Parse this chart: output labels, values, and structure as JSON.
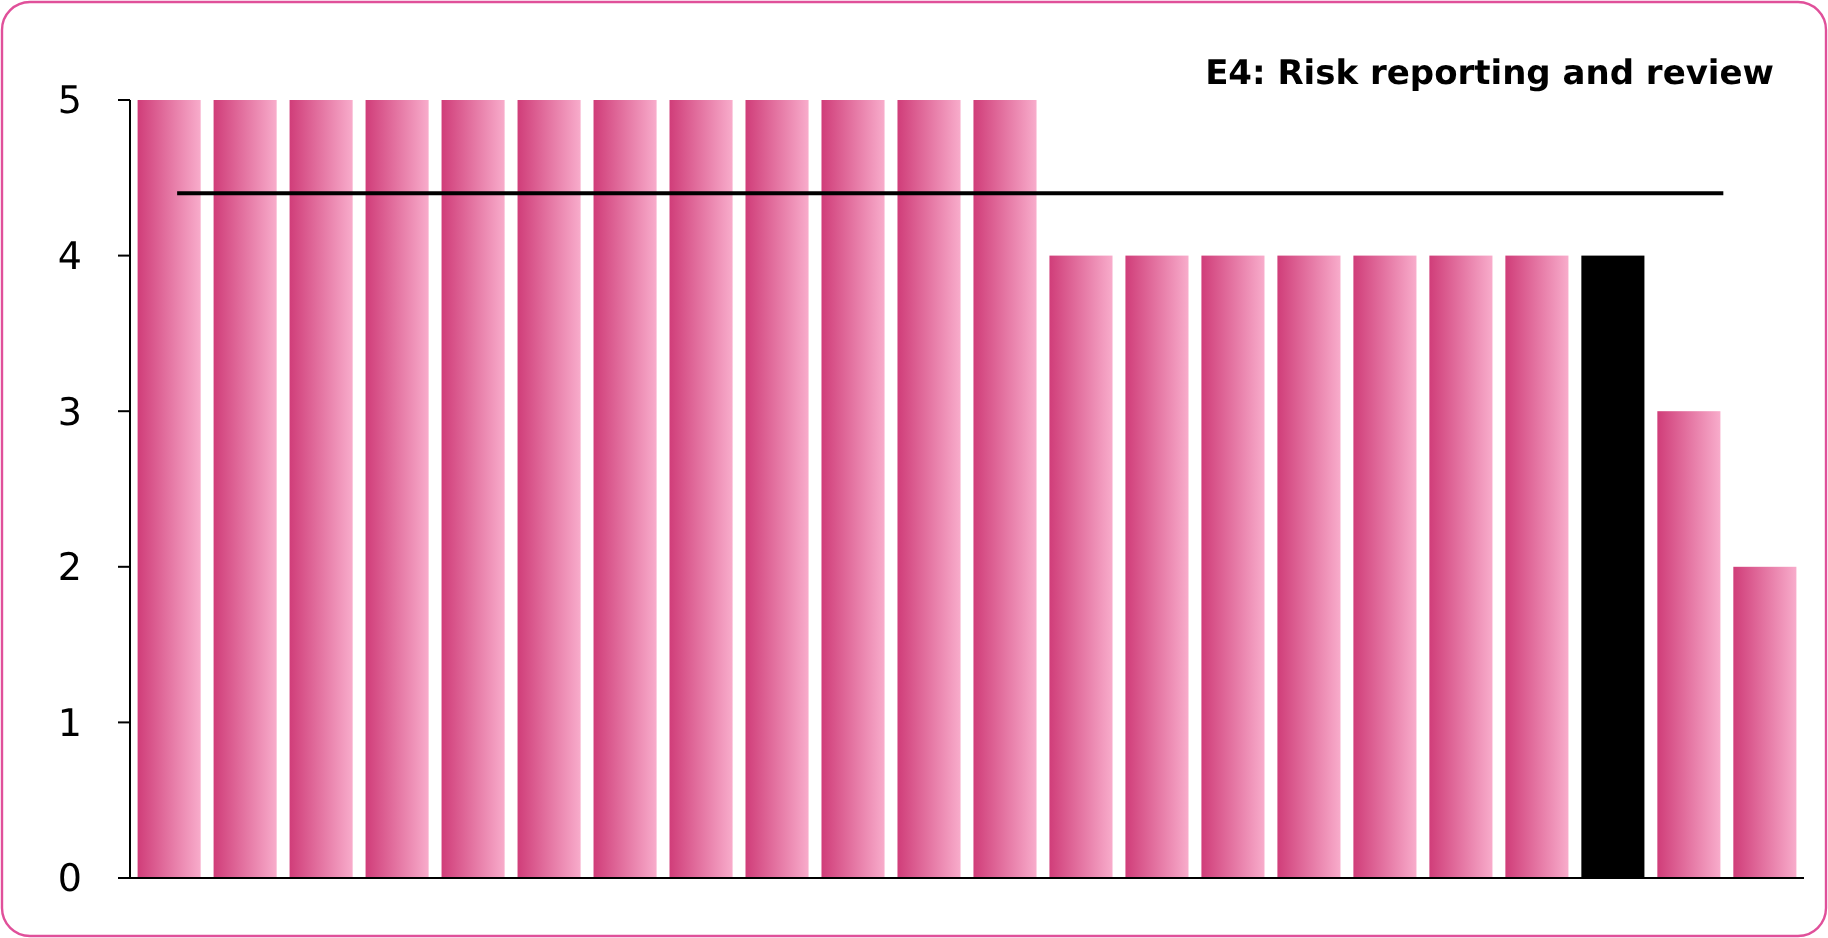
{
  "chart_data": {
    "type": "bar",
    "title": "E4: Risk reporting and review",
    "categories": [
      null,
      null,
      null,
      null,
      null,
      null,
      null,
      null,
      null,
      null,
      null,
      null,
      null,
      null,
      null,
      null,
      null,
      null,
      null,
      null,
      null,
      null
    ],
    "values": [
      5,
      5,
      5,
      5,
      5,
      5,
      5,
      5,
      5,
      5,
      5,
      5,
      4,
      4,
      4,
      4,
      4,
      4,
      4,
      4,
      3,
      2
    ],
    "colors": [
      "#f0468c",
      "#f0468c",
      "#f0468c",
      "#f0468c",
      "#f0468c",
      "#f0468c",
      "#f0468c",
      "#f0468c",
      "#f0468c",
      "#f0468c",
      "#f0468c",
      "#f0468c",
      "#f0468c",
      "#f0468c",
      "#f0468c",
      "#f0468c",
      "#f0468c",
      "#f0468c",
      "#f0468c",
      "#000000",
      "#f0468c",
      "#f0468c"
    ],
    "ylim": [
      0,
      5
    ],
    "yticks": [
      0,
      1,
      2,
      3,
      4,
      5
    ],
    "grid": false,
    "ref_lines": [
      {
        "axis": "y",
        "value": 4.4,
        "color": "#000000"
      }
    ]
  }
}
